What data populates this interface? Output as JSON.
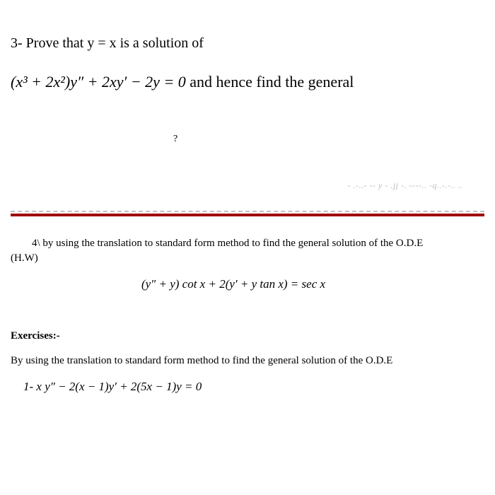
{
  "problem3": {
    "title_prefix": "3- Prove that   ",
    "title_equation": "y = x",
    "title_suffix": "   is a solution of",
    "equation": "(x³ + 2x²)y″ + 2xy′ − 2y = 0",
    "equation_suffix": "   and hence find the general",
    "mark": "?"
  },
  "fragment": "- .-..- -- y - .jj -. ----.. -q..-.-.. ..",
  "problem4": {
    "text": "4\\ by using the translation to standard form method to find the general solution of the O.D.E",
    "hw": "(H.W)",
    "equation": "(y″ + y) cot x + 2(y′ + y tan x) = sec x"
  },
  "exercises": {
    "heading": "Exercises:-",
    "instruction": "By using the translation to standard form method to find the general solution of the O.D.E",
    "item1": "1-   x y″ − 2(x − 1)y′ + 2(5x − 1)y = 0"
  },
  "colors": {
    "text": "#000000",
    "background": "#ffffff",
    "rule": "#a00000"
  }
}
